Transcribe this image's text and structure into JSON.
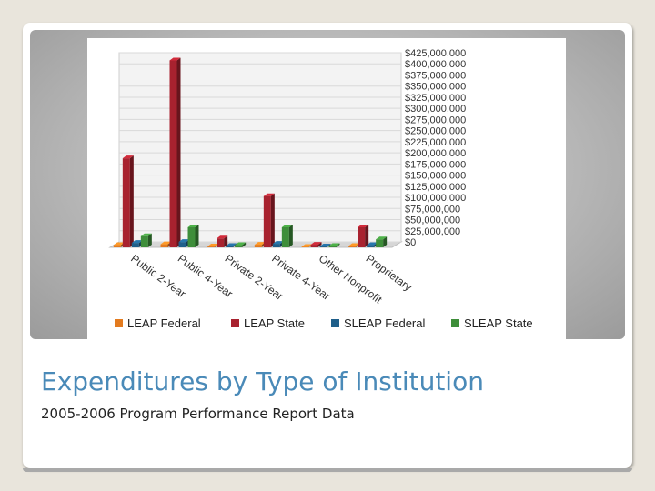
{
  "slide": {
    "title": "Expenditures by Type of Institution",
    "subtitle": "2005-2006 Program Performance Report Data"
  },
  "chart_data": {
    "type": "bar",
    "style": "3d-clustered",
    "title": "",
    "xlabel": "",
    "ylabel": "",
    "ylim": [
      0,
      425000000
    ],
    "y_axis_side": "right",
    "grid": true,
    "legend_position": "bottom",
    "categories": [
      "Public 2-Year",
      "Public 4-Year",
      "Private 2-Year",
      "Private 4-Year",
      "Other Nonprofit",
      "Proprietary"
    ],
    "y_ticks": [
      "$0",
      "$25,000,000",
      "$50,000,000",
      "$75,000,000",
      "$100,000,000",
      "$125,000,000",
      "$150,000,000",
      "$175,000,000",
      "$200,000,000",
      "$225,000,000",
      "$250,000,000",
      "$275,000,000",
      "$300,000,000",
      "$325,000,000",
      "$350,000,000",
      "$375,000,000",
      "$400,000,000",
      "$425,000,000"
    ],
    "series": [
      {
        "name": "LEAP Federal",
        "color": "#e37b1f",
        "values": [
          5000000,
          7000000,
          2000000,
          6000000,
          1000000,
          3000000
        ]
      },
      {
        "name": "LEAP State",
        "color": "#a8222f",
        "values": [
          200000000,
          420000000,
          20000000,
          115000000,
          6000000,
          45000000
        ]
      },
      {
        "name": "SLEAP Federal",
        "color": "#1f5f8a",
        "values": [
          10000000,
          12000000,
          3000000,
          8000000,
          2000000,
          5000000
        ]
      },
      {
        "name": "SLEAP State",
        "color": "#3e8e3a",
        "values": [
          25000000,
          45000000,
          5000000,
          45000000,
          3000000,
          18000000
        ]
      }
    ]
  }
}
